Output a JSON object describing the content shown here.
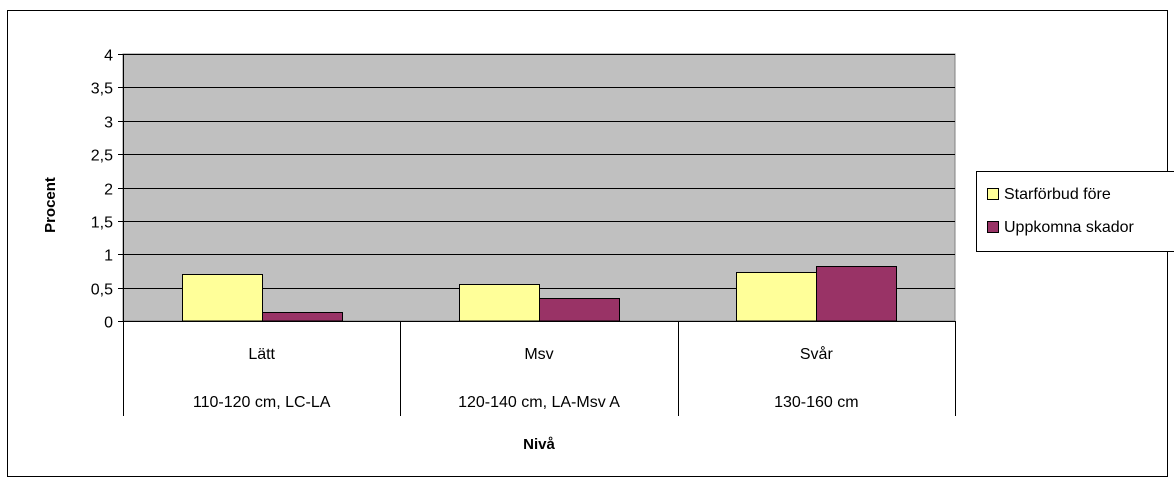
{
  "chart_data": {
    "type": "bar",
    "title": "",
    "xlabel": "Nivå",
    "ylabel": "Procent",
    "ylim": [
      0,
      4
    ],
    "yticks": [
      "0",
      "0,5",
      "1",
      "1,5",
      "2",
      "2,5",
      "3",
      "3,5",
      "4"
    ],
    "ytick_values": [
      0,
      0.5,
      1,
      1.5,
      2,
      2.5,
      3,
      3.5,
      4
    ],
    "grid": true,
    "legend_position": "right",
    "categories": [
      {
        "level": "Lätt",
        "range": "110-120 cm, LC-LA"
      },
      {
        "level": "Msv",
        "range": "120-140 cm, LA-Msv A"
      },
      {
        "level": "Svår",
        "range": "130-160 cm"
      }
    ],
    "series": [
      {
        "name": "Starförbud före",
        "color": "#ffff99",
        "values": [
          0.7,
          0.55,
          0.73
        ]
      },
      {
        "name": "Uppkomna skador",
        "color": "#993366",
        "values": [
          0.13,
          0.35,
          0.82
        ]
      }
    ],
    "plot_background": "#c0c0c0"
  }
}
